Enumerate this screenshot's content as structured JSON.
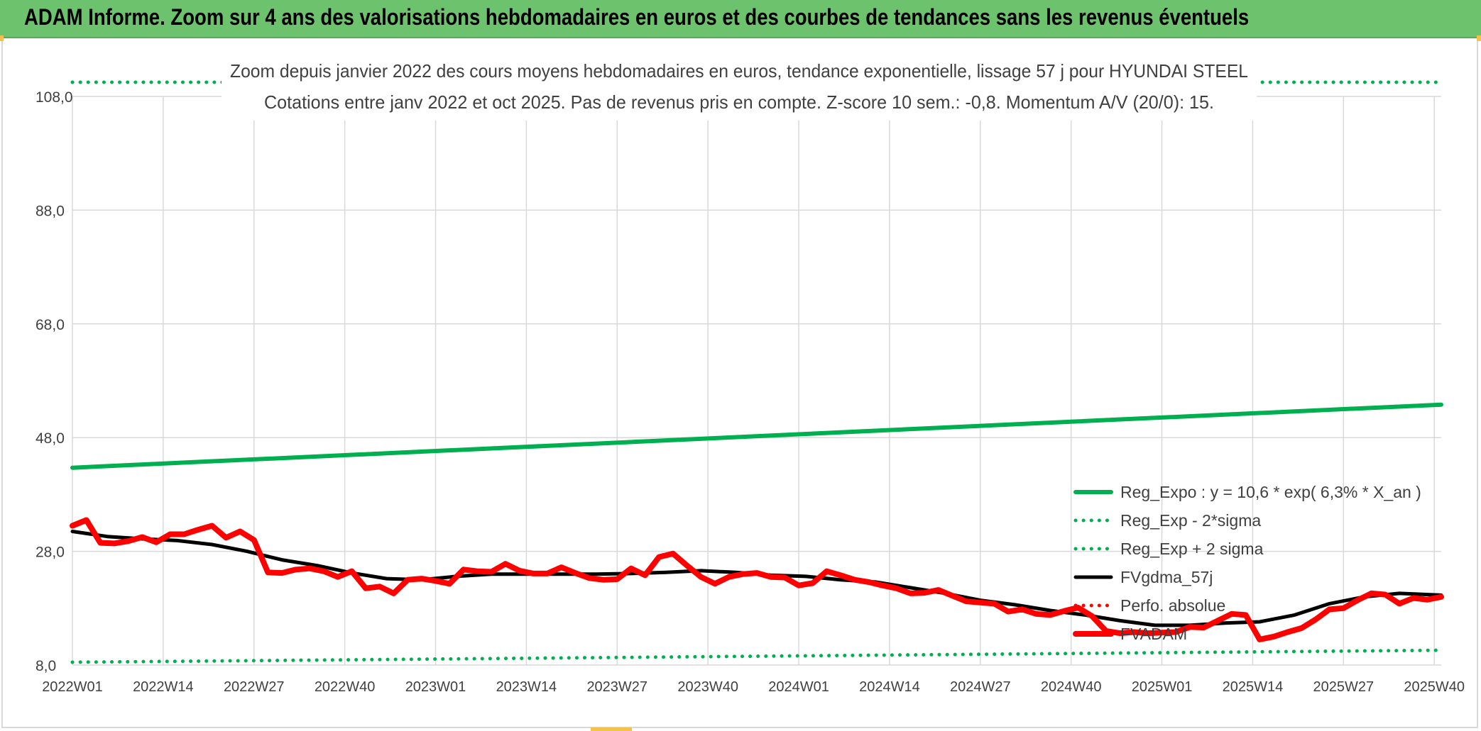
{
  "header": {
    "title": "ADAM Informe. Zoom sur 4 ans des valorisations hebdomadaires en euros et des courbes de tendances sans les revenus éventuels"
  },
  "colors": {
    "header_bg": "#6dc26d",
    "reg_green": "#00b050",
    "fv_black": "#000000",
    "fvadam_red": "#ff0000",
    "perfo_red": "#ff0000",
    "grid": "#d9d9d9",
    "text": "#404040"
  },
  "chart_data": {
    "type": "line",
    "title": "Zoom depuis janvier 2022 des cours moyens hebdomadaires en euros, tendance exponentielle, lissage 57 j pour HYUNDAI STEEL",
    "subtitle": "Cotations entre janv 2022 et oct 2025. Pas de revenus pris en compte. Z-score 10 sem.: -0,8. Momentum A/V (20/0): 15.",
    "ylim": [
      8,
      108
    ],
    "yticks": [
      "108,0",
      "88,0",
      "68,0",
      "48,0",
      "28,0",
      "8,0"
    ],
    "ytick_values": [
      108,
      88,
      68,
      48,
      28,
      8
    ],
    "xlim": [
      0,
      196
    ],
    "xticks": [
      "2022W01",
      "2022W14",
      "2022W27",
      "2022W40",
      "2023W01",
      "2023W14",
      "2023W27",
      "2023W40",
      "2024W01",
      "2024W14",
      "2024W27",
      "2024W40",
      "2025W01",
      "2025W14",
      "2025W27",
      "2025W40"
    ],
    "xtick_positions": [
      0,
      13,
      26,
      39,
      52,
      65,
      78,
      91,
      104,
      117,
      130,
      143,
      156,
      169,
      182,
      195
    ],
    "legend_position": "bottom-right",
    "series": [
      {
        "name": "Reg_Expo : y = 10,6 * exp( 6,3% *  X_an )",
        "style": "solid-thick",
        "color": "#00b050",
        "x": [
          0,
          196
        ],
        "values": [
          42.7,
          53.8
        ]
      },
      {
        "name": "Reg_Exp - 2*sigma",
        "style": "dotted",
        "color": "#00b050",
        "x": [
          0,
          196
        ],
        "values": [
          8.5,
          10.6
        ]
      },
      {
        "name": "Reg_Exp + 2 sigma",
        "style": "dotted",
        "color": "#00b050",
        "x": [
          0,
          196
        ],
        "values": [
          110.5,
          110.5
        ]
      },
      {
        "name": "FVgdma_57j",
        "style": "solid",
        "color": "#000000",
        "x": [
          0,
          5,
          10,
          15,
          20,
          25,
          30,
          35,
          40,
          45,
          50,
          55,
          60,
          65,
          70,
          75,
          80,
          85,
          90,
          95,
          100,
          105,
          110,
          115,
          120,
          125,
          130,
          135,
          140,
          145,
          150,
          155,
          160,
          165,
          170,
          175,
          180,
          185,
          190,
          196
        ],
        "values": [
          31.5,
          30.6,
          30.2,
          29.9,
          29.2,
          28.0,
          26.5,
          25.5,
          24.2,
          23.2,
          23.0,
          23.6,
          24.0,
          24.0,
          24.0,
          24.0,
          24.1,
          24.3,
          24.6,
          24.3,
          23.8,
          23.6,
          23.0,
          22.6,
          21.6,
          20.6,
          19.4,
          18.6,
          17.6,
          16.8,
          15.8,
          15.0,
          15.0,
          15.4,
          15.6,
          16.8,
          18.8,
          20.0,
          20.6,
          20.3
        ]
      },
      {
        "name": "Perfo. absolue",
        "style": "dotted",
        "color": "#ff0000",
        "x": [],
        "values": []
      },
      {
        "name": "FVADAM",
        "style": "solid-thick",
        "color": "#ff0000",
        "x": [
          0,
          2,
          4,
          6,
          8,
          10,
          12,
          14,
          16,
          18,
          20,
          22,
          24,
          26,
          28,
          30,
          32,
          34,
          36,
          38,
          40,
          42,
          44,
          46,
          48,
          50,
          52,
          54,
          56,
          58,
          60,
          62,
          64,
          66,
          68,
          70,
          72,
          74,
          76,
          78,
          80,
          82,
          84,
          86,
          88,
          90,
          92,
          94,
          96,
          98,
          100,
          102,
          104,
          106,
          108,
          110,
          112,
          114,
          116,
          118,
          120,
          122,
          124,
          126,
          128,
          130,
          132,
          134,
          136,
          138,
          140,
          142,
          144,
          146,
          148,
          150,
          152,
          154,
          156,
          158,
          160,
          162,
          164,
          166,
          168,
          170,
          172,
          174,
          176,
          178,
          180,
          182,
          184,
          186,
          188,
          190,
          192,
          194,
          196
        ],
        "values": [
          32.5,
          33.5,
          29.5,
          29.4,
          29.8,
          30.5,
          29.6,
          31.0,
          31.0,
          31.8,
          32.5,
          30.4,
          31.5,
          30.0,
          24.3,
          24.2,
          24.8,
          25.0,
          24.5,
          23.5,
          24.5,
          21.5,
          21.8,
          20.6,
          23.0,
          23.2,
          22.8,
          22.3,
          24.8,
          24.5,
          24.4,
          25.8,
          24.6,
          24.1,
          24.1,
          25.2,
          24.2,
          23.3,
          23.0,
          23.1,
          25.0,
          23.8,
          27.0,
          27.6,
          25.5,
          23.5,
          22.3,
          23.5,
          24.0,
          24.2,
          23.5,
          23.4,
          22.0,
          22.4,
          24.5,
          23.8,
          23.0,
          22.6,
          22.0,
          21.5,
          20.6,
          20.7,
          21.2,
          20.2,
          19.2,
          19.0,
          18.8,
          17.4,
          17.8,
          17.0,
          16.8,
          17.5,
          18.1,
          16.6,
          14.0,
          13.6,
          13.8,
          13.6,
          13.7,
          13.8,
          14.7,
          14.6,
          15.8,
          17.0,
          16.8,
          12.5,
          13.0,
          13.8,
          14.5,
          16.0,
          17.8,
          18.0,
          19.4,
          20.6,
          20.4,
          18.8,
          19.8,
          19.5,
          20.0
        ]
      }
    ]
  }
}
